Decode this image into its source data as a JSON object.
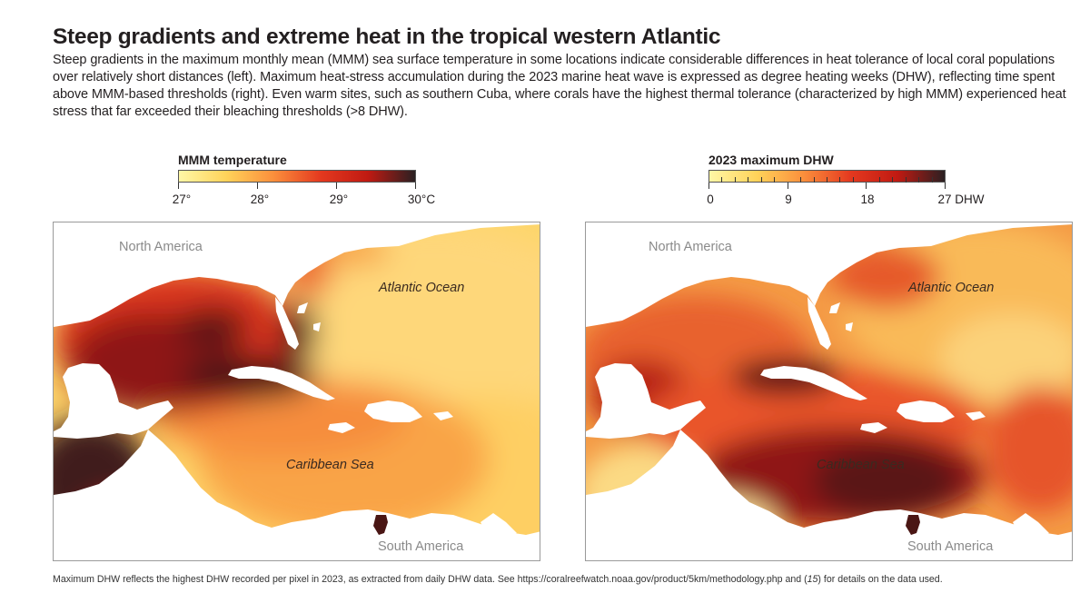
{
  "title": "Steep gradients and extreme heat in the tropical western Atlantic",
  "description": "Steep gradients in the maximum monthly mean (MMM) sea surface temperature in some locations indicate considerable differences in heat tolerance of local coral populations over relatively short distances (left). Maximum heat-stress accumulation during the 2023 marine heat wave is expressed as degree heating weeks (DHW), reflecting time spent above MMM-based thresholds (right). Even warm sites, such as southern Cuba, where corals have the highest thermal tolerance (characterized by high MMM) experienced heat stress that far exceeded their bleaching thresholds (>8 DHW).",
  "left_legend": {
    "title": "MMM temperature",
    "ticks": [
      "27°",
      "28°",
      "29°",
      "30°C"
    ],
    "range": [
      27,
      30
    ],
    "colors": [
      "#fff7a6",
      "#ffd35a",
      "#fb8f3c",
      "#e4391f",
      "#c01a12",
      "#2a2022"
    ]
  },
  "right_legend": {
    "title": "2023 maximum DHW",
    "ticks": [
      "0",
      "9",
      "18",
      "27 DHW"
    ],
    "range": [
      0,
      27
    ],
    "minor_tick_step": 1.5,
    "colors": [
      "#fff7a6",
      "#ffd35a",
      "#fb8f3c",
      "#e4391f",
      "#c01a12",
      "#2a2022"
    ]
  },
  "map_labels": {
    "north_america": "North America",
    "atlantic_ocean": "Atlantic Ocean",
    "caribbean_sea": "Caribbean Sea",
    "south_america": "South America"
  },
  "footnote": {
    "pre": "Maximum DHW reflects the highest DHW recorded per pixel in 2023, as extracted from daily DHW data. See https://coralreefwatch.noaa.gov/product/5km/methodology.php and (",
    "ref": "15",
    "post": ") for details on the data used."
  }
}
